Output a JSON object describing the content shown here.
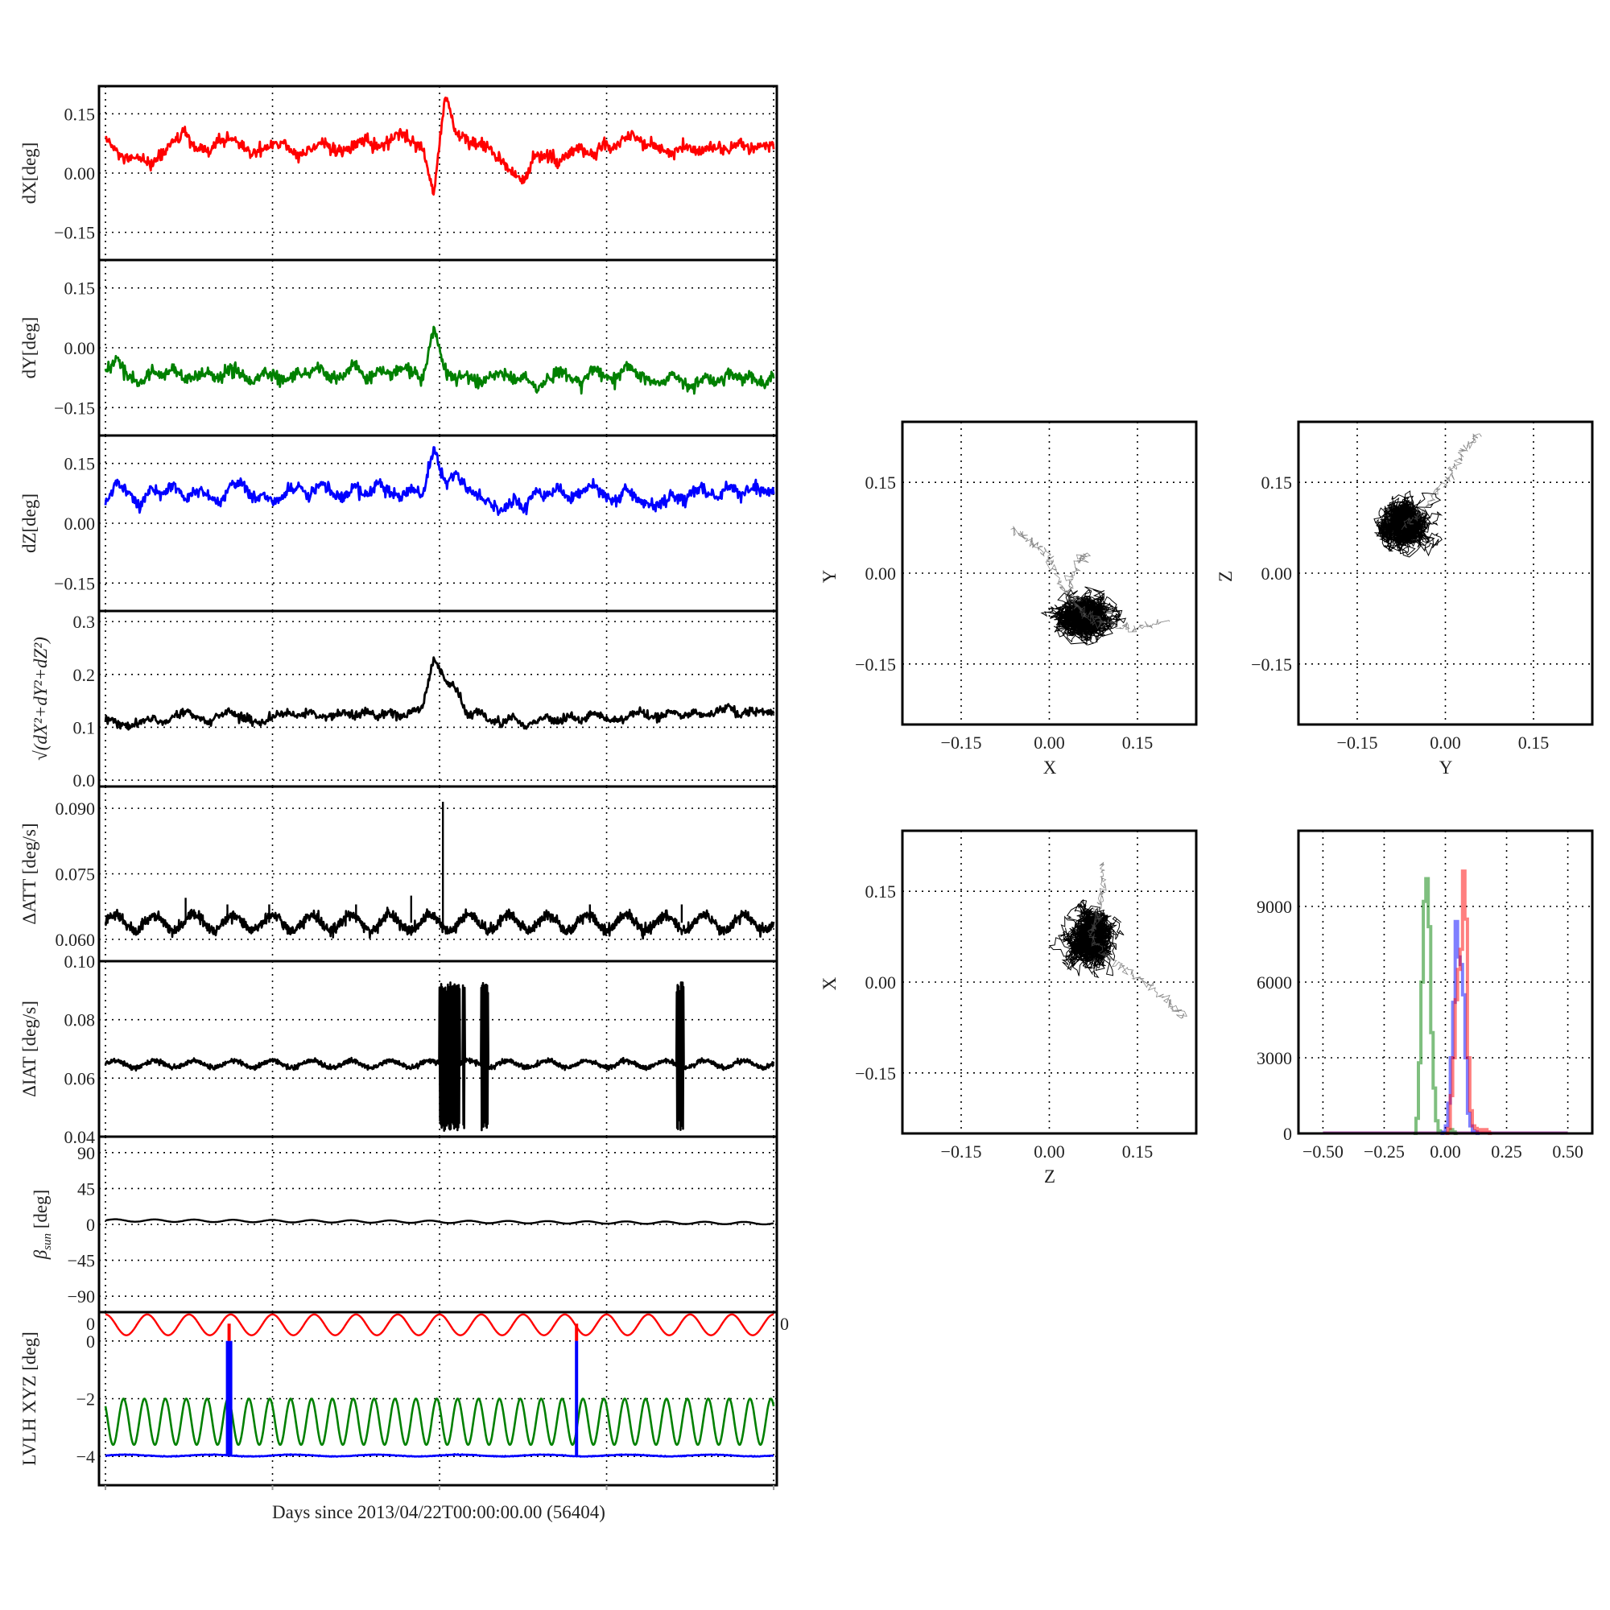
{
  "chart_data": [
    {
      "id": "dX",
      "type": "line",
      "ylabel": "dX[deg]",
      "color": "#ff0000",
      "ylim": [
        -0.22,
        0.22
      ],
      "yticks": [
        "0.15",
        "0.00",
        "−0.15"
      ],
      "ytick_values": [
        0.15,
        0,
        -0.15
      ],
      "x_start": 0,
      "x_end": 4,
      "noise": 0.008,
      "values": [
        0.09,
        0.05,
        0.03,
        0.04,
        0.02,
        0.05,
        0.08,
        0.1,
        0.06,
        0.05,
        0.08,
        0.09,
        0.07,
        0.05,
        0.06,
        0.08,
        0.07,
        0.04,
        0.06,
        0.08,
        0.06,
        0.05,
        0.07,
        0.09,
        0.06,
        0.08,
        0.1,
        0.08,
        0.06,
        -0.05,
        0.2,
        0.1,
        0.08,
        0.07,
        0.06,
        0.03,
        0.0,
        -0.02,
        0.05,
        0.04,
        0.03,
        0.05,
        0.06,
        0.04,
        0.08,
        0.06,
        0.1,
        0.09,
        0.07,
        0.06,
        0.05,
        0.07,
        0.05,
        0.06,
        0.07,
        0.05,
        0.08,
        0.06,
        0.07,
        0.07
      ]
    },
    {
      "id": "dY",
      "type": "line",
      "ylabel": "dY[deg]",
      "color": "#008000",
      "ylim": [
        -0.22,
        0.22
      ],
      "yticks": [
        "0.15",
        "0.00",
        "−0.15"
      ],
      "ytick_values": [
        0.15,
        0,
        -0.15
      ],
      "x_start": 0,
      "x_end": 4,
      "noise": 0.008,
      "values": [
        -0.06,
        -0.03,
        -0.07,
        -0.09,
        -0.06,
        -0.07,
        -0.05,
        -0.08,
        -0.07,
        -0.06,
        -0.08,
        -0.05,
        -0.07,
        -0.09,
        -0.06,
        -0.07,
        -0.08,
        -0.06,
        -0.07,
        -0.05,
        -0.08,
        -0.07,
        -0.04,
        -0.08,
        -0.06,
        -0.07,
        -0.05,
        -0.06,
        -0.08,
        0.05,
        -0.06,
        -0.08,
        -0.07,
        -0.09,
        -0.07,
        -0.06,
        -0.08,
        -0.07,
        -0.1,
        -0.08,
        -0.06,
        -0.07,
        -0.09,
        -0.05,
        -0.07,
        -0.08,
        -0.04,
        -0.07,
        -0.08,
        -0.09,
        -0.07,
        -0.08,
        -0.1,
        -0.07,
        -0.09,
        -0.06,
        -0.08,
        -0.07,
        -0.09,
        -0.08
      ]
    },
    {
      "id": "dZ",
      "type": "line",
      "ylabel": "dZ[deg]",
      "color": "#0000ff",
      "ylim": [
        -0.22,
        0.22
      ],
      "yticks": [
        "0.15",
        "0.00",
        "−0.15"
      ],
      "ytick_values": [
        0.15,
        0,
        -0.15
      ],
      "x_start": 0,
      "x_end": 4,
      "noise": 0.008,
      "values": [
        0.05,
        0.1,
        0.08,
        0.04,
        0.09,
        0.07,
        0.1,
        0.06,
        0.08,
        0.07,
        0.05,
        0.09,
        0.1,
        0.06,
        0.07,
        0.05,
        0.08,
        0.09,
        0.07,
        0.1,
        0.08,
        0.06,
        0.09,
        0.07,
        0.1,
        0.08,
        0.06,
        0.09,
        0.07,
        0.19,
        0.1,
        0.13,
        0.08,
        0.07,
        0.05,
        0.03,
        0.06,
        0.04,
        0.08,
        0.07,
        0.09,
        0.06,
        0.08,
        0.1,
        0.07,
        0.05,
        0.09,
        0.06,
        0.04,
        0.05,
        0.07,
        0.06,
        0.09,
        0.08,
        0.06,
        0.1,
        0.07,
        0.09,
        0.08,
        0.08
      ]
    },
    {
      "id": "mag",
      "type": "line",
      "ylabel": "√(dX²+dY²+dZ²)",
      "color": "#000000",
      "ylim": [
        -0.012,
        0.32
      ],
      "yticks": [
        "0.3",
        "0.2",
        "0.1",
        "0.0"
      ],
      "ytick_values": [
        0.3,
        0.2,
        0.1,
        0.0
      ],
      "x_start": 0,
      "x_end": 4,
      "noise": 0.004,
      "values": [
        0.12,
        0.11,
        0.1,
        0.11,
        0.12,
        0.11,
        0.12,
        0.13,
        0.12,
        0.11,
        0.12,
        0.13,
        0.12,
        0.11,
        0.11,
        0.12,
        0.13,
        0.12,
        0.13,
        0.12,
        0.12,
        0.13,
        0.12,
        0.13,
        0.12,
        0.13,
        0.12,
        0.13,
        0.14,
        0.23,
        0.19,
        0.17,
        0.12,
        0.13,
        0.11,
        0.11,
        0.12,
        0.1,
        0.11,
        0.12,
        0.11,
        0.12,
        0.11,
        0.13,
        0.12,
        0.11,
        0.12,
        0.13,
        0.12,
        0.12,
        0.13,
        0.12,
        0.13,
        0.12,
        0.13,
        0.14,
        0.12,
        0.13,
        0.13,
        0.13
      ]
    },
    {
      "id": "datt",
      "type": "line",
      "ylabel": "ΔATT [deg/s]",
      "color": "#000000",
      "ylim": [
        0.055,
        0.095
      ],
      "yticks": [
        "0.090",
        "0.075",
        "0.060"
      ],
      "ytick_values": [
        0.09,
        0.075,
        0.06
      ],
      "baseline": 0.0638,
      "amplitude": 0.0018,
      "cycles": 17,
      "noise": 0.0012,
      "spikes": [
        [
          0.48,
          0.0695
        ],
        [
          0.73,
          0.068
        ],
        [
          0.98,
          0.068
        ],
        [
          1.5,
          0.068
        ],
        [
          1.83,
          0.07
        ],
        [
          2.02,
          0.0915
        ],
        [
          2.9,
          0.068
        ],
        [
          3.45,
          0.068
        ]
      ],
      "bursts": [],
      "burst_range": []
    },
    {
      "id": "diat",
      "type": "line",
      "ylabel": "ΔIAT [deg/s]",
      "color": "#000000",
      "ylim": [
        0.04,
        0.1
      ],
      "yticks": [
        "0.10",
        "0.08",
        "0.06",
        "0.04"
      ],
      "ytick_values": [
        0.1,
        0.08,
        0.06,
        0.04
      ],
      "baseline": 0.0648,
      "amplitude": 0.0012,
      "cycles": 17,
      "noise": 0.0008,
      "spikes": [],
      "bursts": [
        [
          2.0,
          2.12
        ],
        [
          2.14,
          2.15
        ],
        [
          2.25,
          2.29
        ],
        [
          3.42,
          3.46
        ]
      ],
      "burst_range": [
        0.042,
        0.093
      ]
    },
    {
      "id": "beta",
      "type": "line",
      "ylabel_symbol": "β",
      "ylabel_sub": "sun",
      "ylabel_unit": " [deg]",
      "color": "#000000",
      "ylim": [
        -110,
        110
      ],
      "yticks": [
        "90",
        "45",
        "0",
        "−45",
        "−90"
      ],
      "ytick_values": [
        90,
        45,
        0,
        -45,
        -90
      ],
      "start": 5,
      "end": 1.5,
      "amplitude": 1.5,
      "cycles": 17
    },
    {
      "id": "lvlh",
      "type": "line",
      "ylabel": "LVLH XYZ [deg]",
      "ylim": [
        -5,
        1
      ],
      "yticks": [
        "0",
        "−2",
        "−4"
      ],
      "ytick_values": [
        0,
        -2,
        -4
      ],
      "top_left_tick": "0",
      "top_right_tick": "0",
      "series": [
        {
          "name": "X",
          "color": "#ff0000",
          "min": 0.2,
          "max": 0.92,
          "cycles": 16
        },
        {
          "name": "Y",
          "color": "#008000",
          "min": -3.6,
          "max": -2.0,
          "cycles": 32
        },
        {
          "name": "Z",
          "color": "#0000ff",
          "level": -3.97,
          "wobble": 0.03
        }
      ],
      "blue_bars": [
        0.74,
        2.82
      ],
      "xlabel": "Days since 2013/04/22T00:00:00.00 (56404)"
    },
    {
      "id": "scatter_xy",
      "type": "scatter",
      "xlabel": "X",
      "ylabel": "Y",
      "xlim": [
        -0.25,
        0.25
      ],
      "ylim": [
        -0.25,
        0.25
      ],
      "ticks": [
        -0.15,
        0.0,
        0.15
      ],
      "tick_labels": [
        "−0.15",
        "0.00",
        "0.15"
      ],
      "center": [
        0.06,
        -0.07
      ],
      "spread": [
        0.024,
        0.018
      ],
      "trails": [
        [
          [
            0.02,
            -0.02
          ],
          [
            0.0,
            0.03
          ],
          [
            -0.03,
            0.05
          ],
          [
            -0.06,
            0.07
          ]
        ],
        [
          [
            0.09,
            -0.08
          ],
          [
            0.14,
            -0.09
          ],
          [
            0.2,
            -0.08
          ]
        ],
        [
          [
            0.03,
            -0.03
          ],
          [
            0.05,
            0.02
          ],
          [
            0.06,
            0.03
          ]
        ]
      ]
    },
    {
      "id": "scatter_yz",
      "type": "scatter",
      "xlabel": "Y",
      "ylabel": "Z",
      "xlim": [
        -0.25,
        0.25
      ],
      "ylim": [
        -0.25,
        0.25
      ],
      "ticks": [
        -0.15,
        0.0,
        0.15
      ],
      "tick_labels": [
        "−0.15",
        "0.00",
        "0.15"
      ],
      "center": [
        -0.07,
        0.08
      ],
      "spread": [
        0.02,
        0.02
      ],
      "trails": [
        [
          [
            -0.04,
            0.1
          ],
          [
            0.0,
            0.15
          ],
          [
            0.03,
            0.2
          ],
          [
            0.06,
            0.23
          ]
        ]
      ]
    },
    {
      "id": "scatter_zx",
      "type": "scatter",
      "xlabel": "Z",
      "ylabel": "X",
      "xlim": [
        -0.25,
        0.25
      ],
      "ylim": [
        -0.25,
        0.25
      ],
      "ticks": [
        -0.15,
        0.0,
        0.15
      ],
      "tick_labels": [
        "−0.15",
        "0.00",
        "0.15"
      ],
      "center": [
        0.07,
        0.07
      ],
      "spread": [
        0.02,
        0.022
      ],
      "trails": [
        [
          [
            0.1,
            0.04
          ],
          [
            0.15,
            0.01
          ],
          [
            0.2,
            -0.03
          ],
          [
            0.23,
            -0.06
          ]
        ],
        [
          [
            0.08,
            0.1
          ],
          [
            0.09,
            0.15
          ],
          [
            0.09,
            0.2
          ]
        ]
      ]
    },
    {
      "id": "histogram",
      "type": "bar",
      "xlim": [
        -0.6,
        0.6
      ],
      "ylim": [
        0,
        12000
      ],
      "xticks": [
        -0.5,
        -0.25,
        0,
        0.25,
        0.5
      ],
      "xtick_labels": [
        "−0.50",
        "−0.25",
        "0.00",
        "0.25",
        "0.50"
      ],
      "yticks": [
        0,
        3000,
        6000,
        9000
      ],
      "ytick_labels": [
        "0",
        "3000",
        "6000",
        "9000"
      ],
      "bin_width": 0.01,
      "series": [
        {
          "name": "dY",
          "color": "#008000",
          "bin_start": -0.13,
          "counts": [
            0,
            600,
            2800,
            6000,
            9200,
            10100,
            8200,
            4000,
            1800,
            500,
            100,
            20,
            20,
            20,
            20,
            150,
            60,
            0
          ]
        },
        {
          "name": "dZ",
          "color": "#0000ff",
          "bin_start": -0.02,
          "counts": [
            0,
            50,
            300,
            1200,
            3000,
            5200,
            8400,
            7000,
            6700,
            5500,
            3000,
            800,
            300,
            100,
            60,
            0
          ]
        },
        {
          "name": "dX",
          "color": "#ff0000",
          "bin_start": 0.0,
          "counts": [
            0,
            200,
            1500,
            3000,
            5300,
            6500,
            7300,
            10400,
            8500,
            3000,
            900,
            300,
            200,
            120,
            150,
            100,
            150,
            60,
            0
          ]
        }
      ]
    }
  ]
}
